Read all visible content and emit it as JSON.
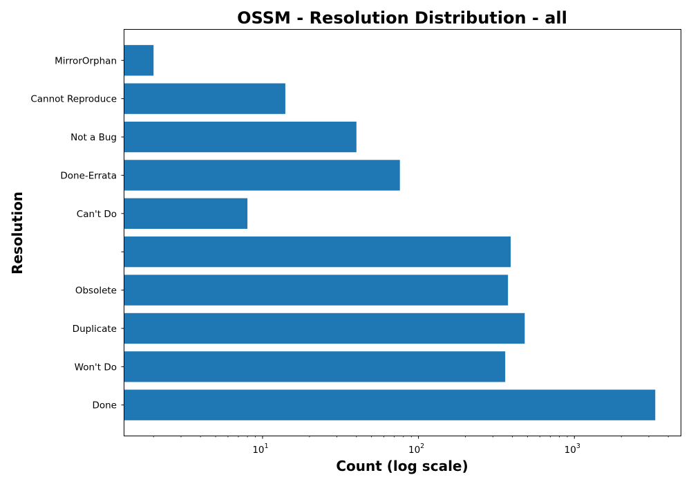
{
  "chart_data": {
    "type": "bar",
    "orientation": "horizontal",
    "title": "OSSM - Resolution Distribution - all",
    "xlabel": "Count (log scale)",
    "ylabel": "Resolution",
    "x_scale": "log",
    "xlim": [
      1.3,
      4800
    ],
    "x_major_ticks": [
      {
        "base": "10",
        "exp": "1",
        "value": 10
      },
      {
        "base": "10",
        "exp": "2",
        "value": 100
      },
      {
        "base": "10",
        "exp": "3",
        "value": 1000
      }
    ],
    "categories": [
      "Done",
      "Won't Do",
      "Duplicate",
      "Obsolete",
      "",
      "Can't Do",
      "Done-Errata",
      "Not a Bug",
      "Cannot Reproduce",
      "MirrorOrphan"
    ],
    "values": [
      3300,
      360,
      480,
      375,
      390,
      8,
      76,
      40,
      14,
      2
    ],
    "color": "#1f77b4",
    "grid": false
  }
}
